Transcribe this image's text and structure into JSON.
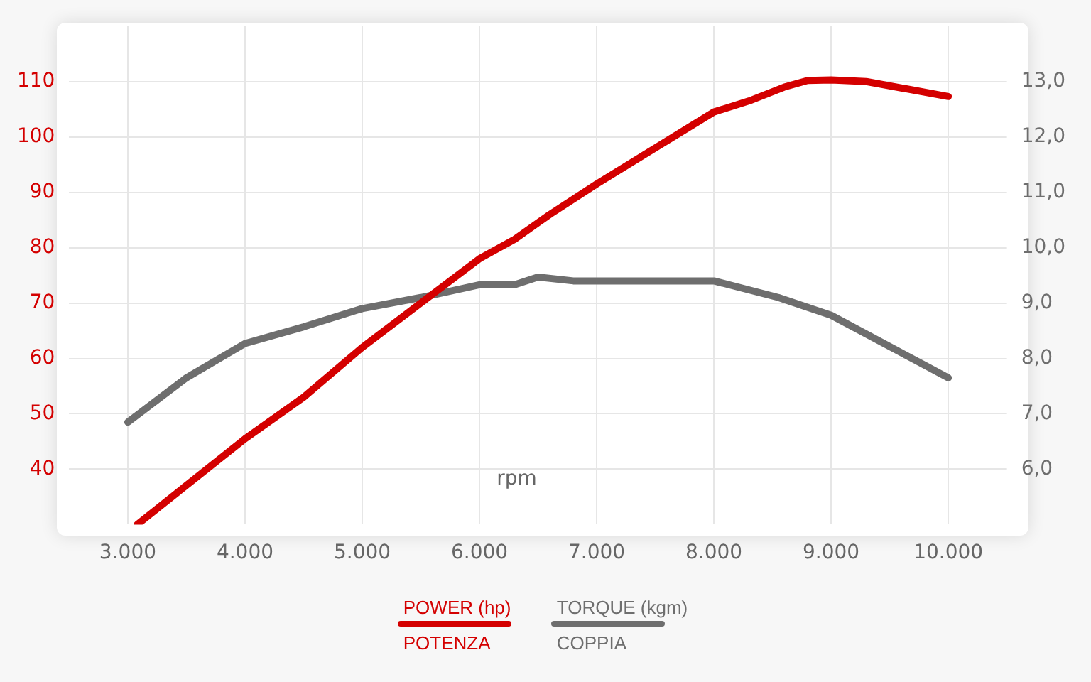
{
  "chart_data": {
    "type": "line",
    "xlabel": "rpm",
    "xlim": [
      2500,
      10500
    ],
    "xticks": [
      {
        "value": 3000,
        "label": "3.000"
      },
      {
        "value": 4000,
        "label": "4.000"
      },
      {
        "value": 5000,
        "label": "5.000"
      },
      {
        "value": 6000,
        "label": "6.000"
      },
      {
        "value": 7000,
        "label": "7.000"
      },
      {
        "value": 8000,
        "label": "8.000"
      },
      {
        "value": 9000,
        "label": "9.000"
      },
      {
        "value": 10000,
        "label": "10.000"
      }
    ],
    "ylim": [
      30,
      120
    ],
    "yticks": [
      40,
      50,
      60,
      70,
      80,
      90,
      100,
      110
    ],
    "y2lim": [
      5,
      14
    ],
    "y2ticks": [
      {
        "value": 6,
        "label": "6,0"
      },
      {
        "value": 7,
        "label": "7,0"
      },
      {
        "value": 8,
        "label": "8,0"
      },
      {
        "value": 9,
        "label": "9,0"
      },
      {
        "value": 10,
        "label": "10,0"
      },
      {
        "value": 11,
        "label": "11,0"
      },
      {
        "value": 12,
        "label": "12,0"
      },
      {
        "value": 13,
        "label": "13,0"
      }
    ],
    "series": [
      {
        "name": "POWER (hp)",
        "color": "#d40000",
        "x": [
          3080,
          4000,
          4500,
          5000,
          5500,
          6000,
          6300,
          6600,
          7000,
          7500,
          8000,
          8300,
          8600,
          8800,
          9000,
          9300,
          10000
        ],
        "values": [
          30,
          45.5,
          53,
          62,
          70,
          78,
          81.5,
          86,
          91.5,
          98,
          104.5,
          106.5,
          109,
          110.2,
          110.3,
          110,
          107.3
        ]
      },
      {
        "name": "TORQUE (kgm)",
        "color": "#6e6e6e",
        "axis": "y2",
        "x": [
          3000,
          3500,
          4000,
          4500,
          5000,
          5500,
          6000,
          6300,
          6500,
          6800,
          8000,
          8550,
          9000,
          10000
        ],
        "values": [
          6.85,
          7.65,
          8.27,
          8.57,
          8.9,
          9.1,
          9.33,
          9.33,
          9.47,
          9.4,
          9.4,
          9.1,
          8.78,
          7.65
        ]
      }
    ],
    "annotations": [
      "POTENZA",
      "COPPIA"
    ],
    "grid": true,
    "legend": "bottom",
    "marker": "none",
    "line_style": "solid"
  }
}
